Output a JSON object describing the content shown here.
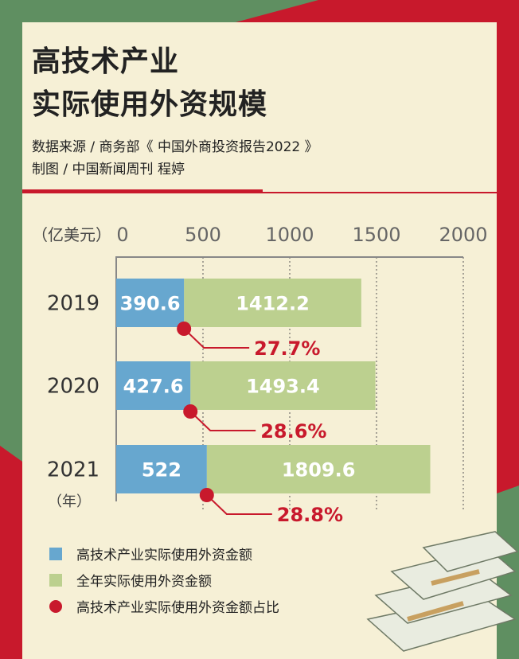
{
  "title_line1": "高技术产业",
  "title_line2": "实际使用外资规模",
  "source": "数据来源 / 商务部《 中国外商投资报告2022 》",
  "credit": "制图 / 中国新闻周刊 程婷",
  "colors": {
    "high_tech": "#67a7cf",
    "total": "#bcd08f",
    "ratio": "#c8192c"
  },
  "chart_data": {
    "type": "bar",
    "orientation": "horizontal",
    "unit_label": "（亿美元）",
    "year_unit_label": "（年）",
    "xlim": [
      0,
      2000
    ],
    "xticks": [
      "0",
      "500",
      "1000",
      "1500",
      "2000"
    ],
    "categories": [
      "2019",
      "2020",
      "2021"
    ],
    "series": [
      {
        "name": "高技术产业实际使用外资金额",
        "values": [
          390.6,
          427.6,
          522
        ],
        "labels": [
          "390.6",
          "427.6",
          "522"
        ]
      },
      {
        "name": "全年实际使用外资金额",
        "values": [
          1412.2,
          1493.4,
          1809.6
        ],
        "labels": [
          "1412.2",
          "1493.4",
          "1809.6"
        ]
      },
      {
        "name": "高技术产业实际使用外资金额占比",
        "values": [
          27.7,
          28.6,
          28.8
        ],
        "labels": [
          "27.7%",
          "28.6%",
          "28.8%"
        ]
      }
    ],
    "grid": true
  }
}
